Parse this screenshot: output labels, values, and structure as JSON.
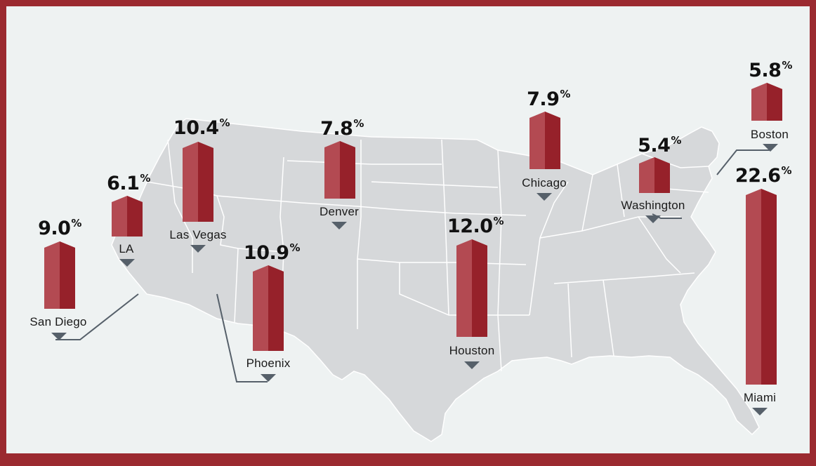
{
  "colors": {
    "frame": "#9b2a30",
    "background": "#eef2f2",
    "land": "#d6d8da",
    "state_border": "#ffffff",
    "bar_light": "#b34a52",
    "bar_dark": "#96212a",
    "marker": "#56606a"
  },
  "cities": [
    {
      "id": "san-diego",
      "name": "San Diego",
      "value": "9.0",
      "unit": "%"
    },
    {
      "id": "la",
      "name": "LA",
      "value": "6.1",
      "unit": "%"
    },
    {
      "id": "las-vegas",
      "name": "Las Vegas",
      "value": "10.4",
      "unit": "%"
    },
    {
      "id": "phoenix",
      "name": "Phoenix",
      "value": "10.9",
      "unit": "%"
    },
    {
      "id": "denver",
      "name": "Denver",
      "value": "7.8",
      "unit": "%"
    },
    {
      "id": "houston",
      "name": "Houston",
      "value": "12.0",
      "unit": "%"
    },
    {
      "id": "chicago",
      "name": "Chicago",
      "value": "7.9",
      "unit": "%"
    },
    {
      "id": "washington",
      "name": "Washington",
      "value": "5.4",
      "unit": "%"
    },
    {
      "id": "boston",
      "name": "Boston",
      "value": "5.8",
      "unit": "%"
    },
    {
      "id": "miami",
      "name": "Miami",
      "value": "22.6",
      "unit": "%"
    }
  ]
}
